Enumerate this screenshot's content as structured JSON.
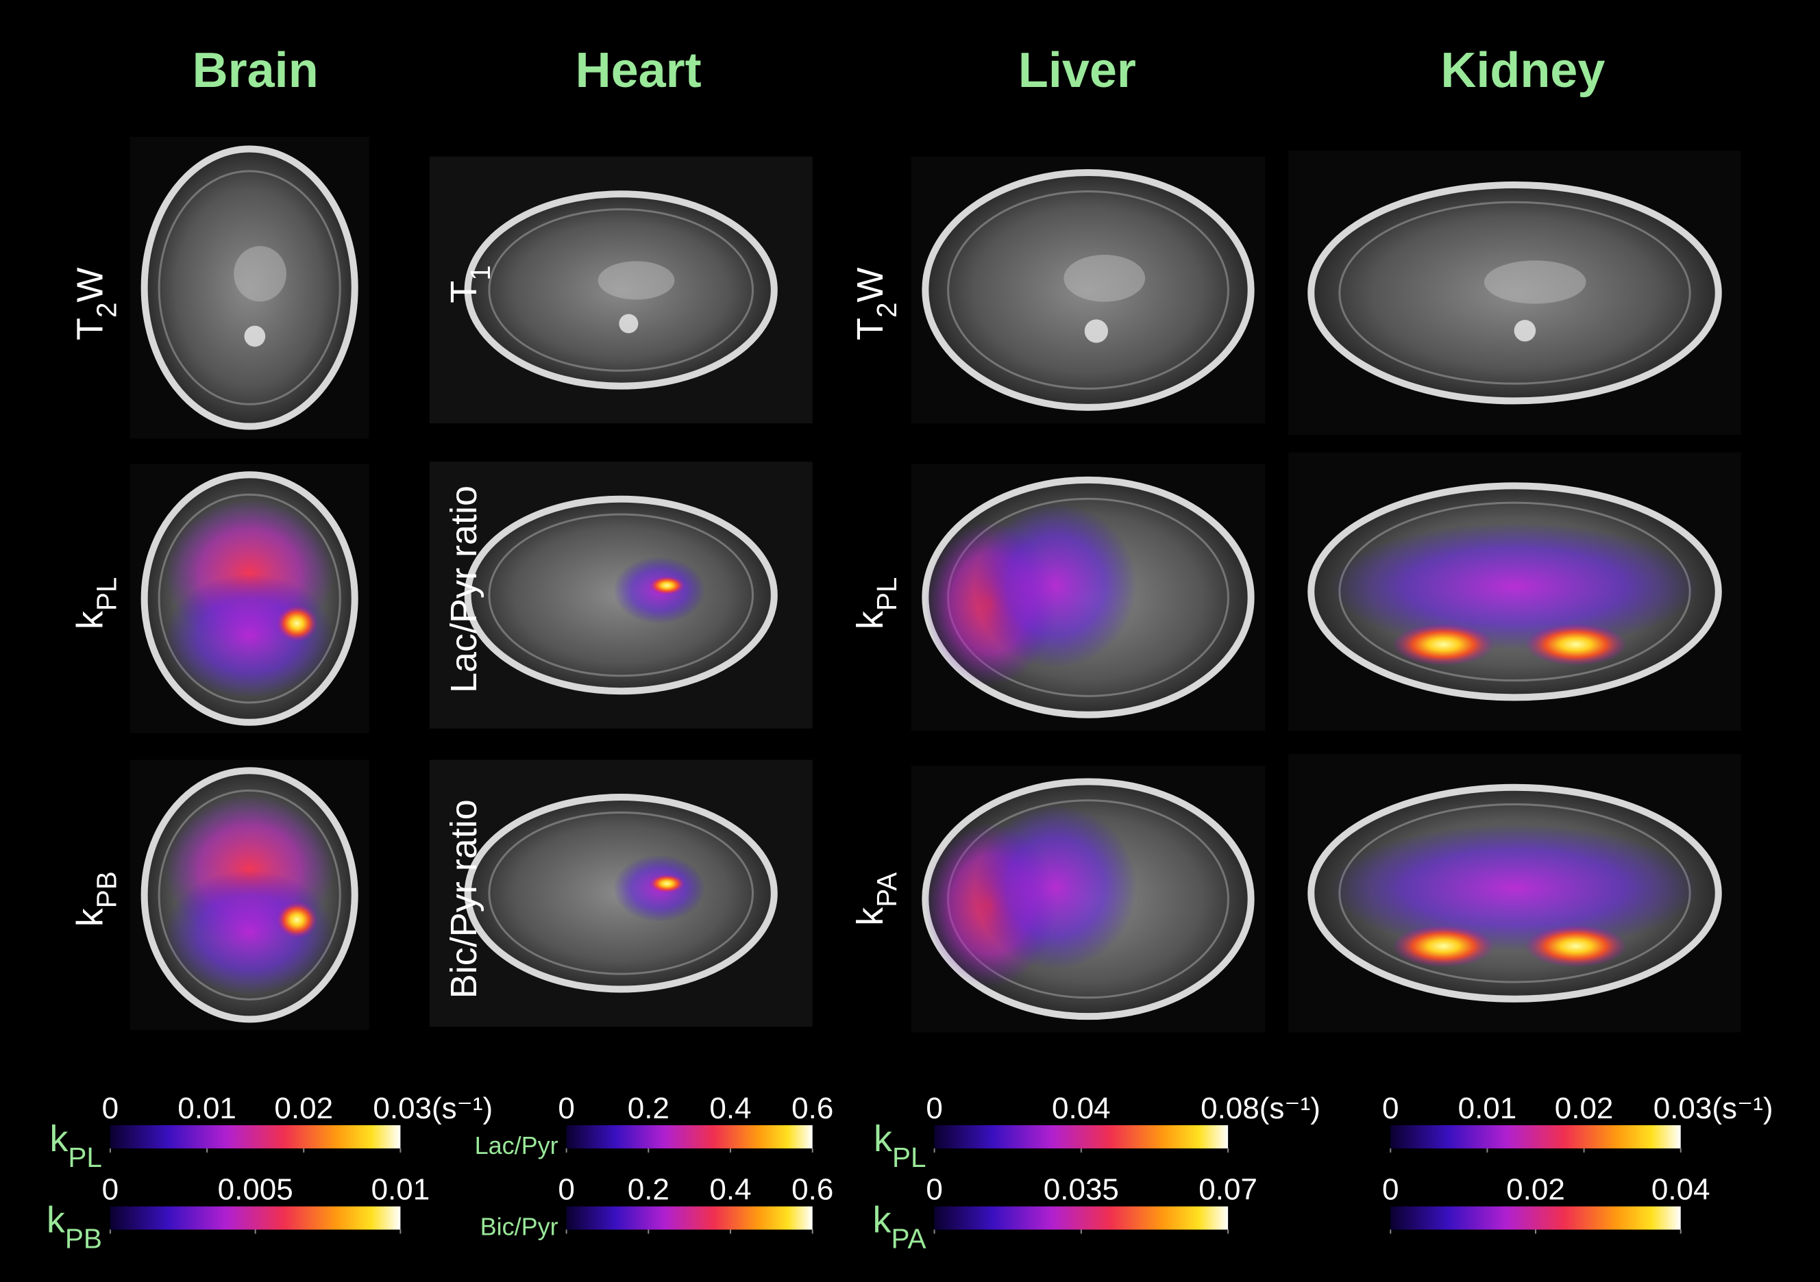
{
  "columns": [
    {
      "title": "Brain",
      "rows": [
        [
          {
            "text": "T"
          },
          {
            "text": "2",
            "sub": true
          },
          {
            "text": "W"
          }
        ],
        [
          {
            "text": "k"
          },
          {
            "text": "PL",
            "sub": true
          }
        ],
        [
          {
            "text": "k"
          },
          {
            "text": "PB",
            "sub": true
          }
        ]
      ],
      "colorbars": [
        {
          "label": [
            {
              "text": "k"
            },
            {
              "text": "PL",
              "sub": true
            }
          ],
          "lim": [
            0,
            0.03
          ],
          "ticks": [
            0,
            0.01,
            0.02,
            {
              "value": 0.03,
              "label": "0.03(s⁻¹)"
            }
          ]
        },
        {
          "label": [
            {
              "text": "k"
            },
            {
              "text": "PB",
              "sub": true
            }
          ],
          "lim": [
            0,
            0.01
          ],
          "ticks": [
            0,
            0.005,
            0.01
          ]
        }
      ]
    },
    {
      "title": "Heart",
      "rows": [
        [
          {
            "text": "T"
          },
          {
            "text": "1",
            "sub": true
          }
        ],
        [
          {
            "text": "Lac/Pyr ratio"
          }
        ],
        [
          {
            "text": "Bic/Pyr ratio"
          }
        ]
      ],
      "colorbars": [
        {
          "label": [
            {
              "text": "Lac/Pyr"
            }
          ],
          "lim": [
            0,
            0.6
          ],
          "ticks": [
            0,
            0.2,
            0.4,
            0.6
          ]
        },
        {
          "label": [
            {
              "text": "Bic/Pyr"
            }
          ],
          "lim": [
            0,
            0.6
          ],
          "ticks": [
            0,
            0.2,
            0.4,
            0.6
          ]
        }
      ]
    },
    {
      "title": "Liver",
      "rows": [
        [
          {
            "text": "T"
          },
          {
            "text": "2",
            "sub": true
          },
          {
            "text": "W"
          }
        ],
        [
          {
            "text": "k"
          },
          {
            "text": "PL",
            "sub": true
          }
        ],
        [
          {
            "text": "k"
          },
          {
            "text": "PA",
            "sub": true
          }
        ]
      ],
      "colorbars": [
        {
          "label": [
            {
              "text": "k"
            },
            {
              "text": "PL",
              "sub": true
            }
          ],
          "lim": [
            0,
            0.08
          ],
          "ticks": [
            0,
            0.04,
            {
              "value": 0.08,
              "label": "0.08(s⁻¹)"
            }
          ]
        },
        {
          "label": [
            {
              "text": "k"
            },
            {
              "text": "PA",
              "sub": true
            }
          ],
          "lim": [
            0,
            0.07
          ],
          "ticks": [
            0,
            0.035,
            0.07
          ]
        }
      ]
    },
    {
      "title": "Kidney",
      "colorbars": [
        {
          "lim": [
            0,
            0.03
          ],
          "ticks": [
            0,
            0.01,
            0.02,
            {
              "value": 0.03,
              "label": "0.03(s⁻¹)"
            }
          ]
        },
        {
          "lim": [
            0,
            0.04
          ],
          "ticks": [
            0,
            0.02,
            0.04
          ]
        }
      ]
    }
  ]
}
